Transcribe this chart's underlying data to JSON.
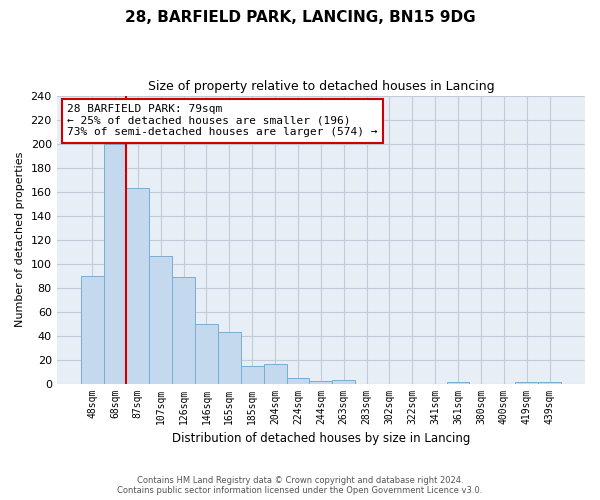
{
  "title": "28, BARFIELD PARK, LANCING, BN15 9DG",
  "subtitle": "Size of property relative to detached houses in Lancing",
  "xlabel": "Distribution of detached houses by size in Lancing",
  "ylabel": "Number of detached properties",
  "bar_labels": [
    "48sqm",
    "68sqm",
    "87sqm",
    "107sqm",
    "126sqm",
    "146sqm",
    "165sqm",
    "185sqm",
    "204sqm",
    "224sqm",
    "244sqm",
    "263sqm",
    "283sqm",
    "302sqm",
    "322sqm",
    "341sqm",
    "361sqm",
    "380sqm",
    "400sqm",
    "419sqm",
    "439sqm"
  ],
  "bar_values": [
    90,
    200,
    163,
    106,
    89,
    50,
    43,
    15,
    16,
    5,
    2,
    3,
    0,
    0,
    0,
    0,
    1,
    0,
    0,
    1,
    1
  ],
  "bar_color": "#c5d9ee",
  "bar_edge_color": "#7aadd4",
  "vline_color": "#cc0000",
  "annotation_title": "28 BARFIELD PARK: 79sqm",
  "annotation_line1": "← 25% of detached houses are smaller (196)",
  "annotation_line2": "73% of semi-detached houses are larger (574) →",
  "annotation_box_color": "#ffffff",
  "annotation_box_edge": "#cc0000",
  "ylim": [
    0,
    240
  ],
  "yticks": [
    0,
    20,
    40,
    60,
    80,
    100,
    120,
    140,
    160,
    180,
    200,
    220,
    240
  ],
  "footer_line1": "Contains HM Land Registry data © Crown copyright and database right 2024.",
  "footer_line2": "Contains public sector information licensed under the Open Government Licence v3.0.",
  "plot_bg_color": "#e8eef5",
  "fig_bg_color": "#ffffff",
  "grid_color": "#c0cdd8"
}
